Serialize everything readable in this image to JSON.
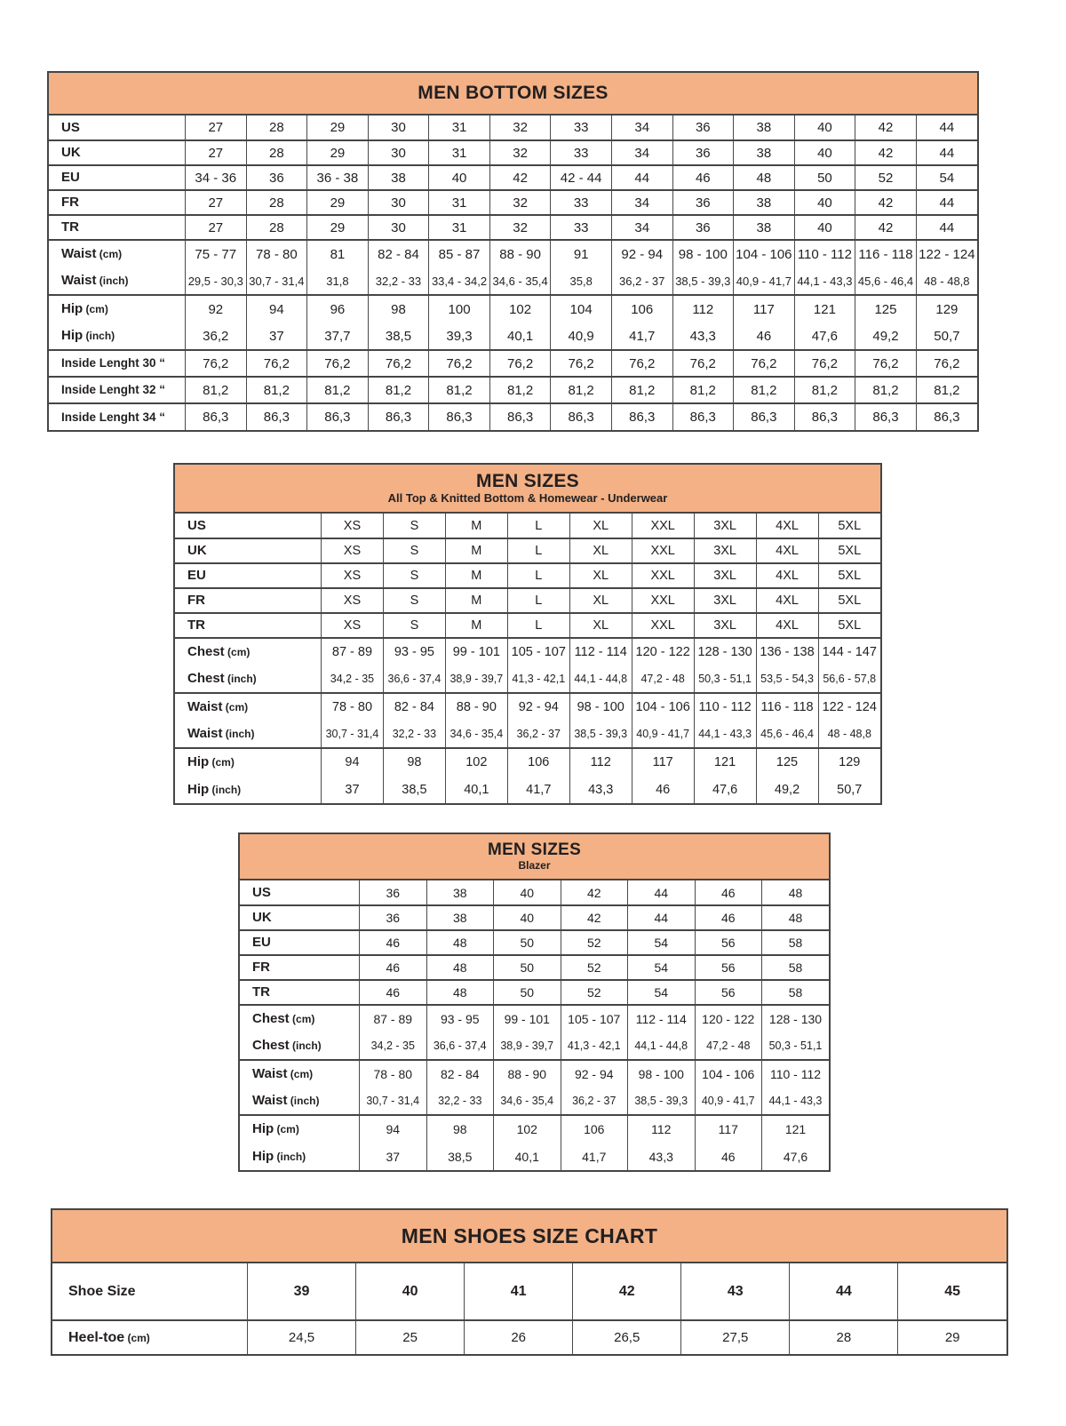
{
  "colors": {
    "header_bg": "#F3B185",
    "border": "#454545",
    "text": "#231f20",
    "page_bg": "#ffffff"
  },
  "tables": [
    {
      "id": "men-bottom-sizes",
      "title": "MEN BOTTOM SIZES",
      "subtitle": "",
      "groups": [
        [
          {
            "label": "US",
            "unit": "",
            "values": [
              "27",
              "28",
              "29",
              "30",
              "31",
              "32",
              "33",
              "34",
              "36",
              "38",
              "40",
              "42",
              "44"
            ]
          }
        ],
        [
          {
            "label": "UK",
            "unit": "",
            "values": [
              "27",
              "28",
              "29",
              "30",
              "31",
              "32",
              "33",
              "34",
              "36",
              "38",
              "40",
              "42",
              "44"
            ]
          }
        ],
        [
          {
            "label": "EU",
            "unit": "",
            "values": [
              "34 - 36",
              "36",
              "36 - 38",
              "38",
              "40",
              "42",
              "42 - 44",
              "44",
              "46",
              "48",
              "50",
              "52",
              "54"
            ]
          }
        ],
        [
          {
            "label": "FR",
            "unit": "",
            "values": [
              "27",
              "28",
              "29",
              "30",
              "31",
              "32",
              "33",
              "34",
              "36",
              "38",
              "40",
              "42",
              "44"
            ]
          }
        ],
        [
          {
            "label": "TR",
            "unit": "",
            "values": [
              "27",
              "28",
              "29",
              "30",
              "31",
              "32",
              "33",
              "34",
              "36",
              "38",
              "40",
              "42",
              "44"
            ]
          }
        ],
        [
          {
            "label": "Waist",
            "unit": "(cm)",
            "values": [
              "75 - 77",
              "78 - 80",
              "81",
              "82 - 84",
              "85 - 87",
              "88 - 90",
              "91",
              "92 - 94",
              "98 - 100",
              "104 - 106",
              "110 - 112",
              "116 - 118",
              "122 - 124"
            ]
          },
          {
            "label": "Waist",
            "unit": "(inch)",
            "size": "sm",
            "values": [
              "29,5 - 30,3",
              "30,7 - 31,4",
              "31,8",
              "32,2 - 33",
              "33,4 - 34,2",
              "34,6 - 35,4",
              "35,8",
              "36,2 - 37",
              "38,5 - 39,3",
              "40,9 - 41,7",
              "44,1 - 43,3",
              "45,6 - 46,4",
              "48 - 48,8"
            ]
          }
        ],
        [
          {
            "label": "Hip",
            "unit": "(cm)",
            "values": [
              "92",
              "94",
              "96",
              "98",
              "100",
              "102",
              "104",
              "106",
              "112",
              "117",
              "121",
              "125",
              "129"
            ]
          },
          {
            "label": "Hip",
            "unit": "(inch)",
            "values": [
              "36,2",
              "37",
              "37,7",
              "38,5",
              "39,3",
              "40,1",
              "40,9",
              "41,7",
              "43,3",
              "46",
              "47,6",
              "49,2",
              "50,7"
            ]
          }
        ],
        [
          {
            "label": "Inside Lenght 30 “",
            "unit": "",
            "label_size": "sm",
            "values": [
              "76,2",
              "76,2",
              "76,2",
              "76,2",
              "76,2",
              "76,2",
              "76,2",
              "76,2",
              "76,2",
              "76,2",
              "76,2",
              "76,2",
              "76,2"
            ]
          }
        ],
        [
          {
            "label": "Inside Lenght 32 “",
            "unit": "",
            "label_size": "sm",
            "values": [
              "81,2",
              "81,2",
              "81,2",
              "81,2",
              "81,2",
              "81,2",
              "81,2",
              "81,2",
              "81,2",
              "81,2",
              "81,2",
              "81,2",
              "81,2"
            ]
          }
        ],
        [
          {
            "label": "Inside Lenght 34 “",
            "unit": "",
            "label_size": "sm",
            "values": [
              "86,3",
              "86,3",
              "86,3",
              "86,3",
              "86,3",
              "86,3",
              "86,3",
              "86,3",
              "86,3",
              "86,3",
              "86,3",
              "86,3",
              "86,3"
            ]
          }
        ]
      ]
    },
    {
      "id": "men-sizes-top",
      "title": "MEN SIZES",
      "subtitle": "All Top & Knitted Bottom & Homewear - Underwear",
      "groups": [
        [
          {
            "label": "US",
            "unit": "",
            "values": [
              "XS",
              "S",
              "M",
              "L",
              "XL",
              "XXL",
              "3XL",
              "4XL",
              "5XL"
            ]
          }
        ],
        [
          {
            "label": "UK",
            "unit": "",
            "values": [
              "XS",
              "S",
              "M",
              "L",
              "XL",
              "XXL",
              "3XL",
              "4XL",
              "5XL"
            ]
          }
        ],
        [
          {
            "label": "EU",
            "unit": "",
            "values": [
              "XS",
              "S",
              "M",
              "L",
              "XL",
              "XXL",
              "3XL",
              "4XL",
              "5XL"
            ]
          }
        ],
        [
          {
            "label": "FR",
            "unit": "",
            "values": [
              "XS",
              "S",
              "M",
              "L",
              "XL",
              "XXL",
              "3XL",
              "4XL",
              "5XL"
            ]
          }
        ],
        [
          {
            "label": "TR",
            "unit": "",
            "values": [
              "XS",
              "S",
              "M",
              "L",
              "XL",
              "XXL",
              "3XL",
              "4XL",
              "5XL"
            ]
          }
        ],
        [
          {
            "label": "Chest",
            "unit": "(cm)",
            "values": [
              "87 - 89",
              "93 - 95",
              "99 - 101",
              "105 - 107",
              "112 - 114",
              "120 - 122",
              "128 - 130",
              "136 - 138",
              "144 - 147"
            ]
          },
          {
            "label": "Chest",
            "unit": "(inch)",
            "size": "sm",
            "values": [
              "34,2 - 35",
              "36,6 - 37,4",
              "38,9 - 39,7",
              "41,3 - 42,1",
              "44,1 - 44,8",
              "47,2 - 48",
              "50,3 - 51,1",
              "53,5 - 54,3",
              "56,6 - 57,8"
            ]
          }
        ],
        [
          {
            "label": "Waist",
            "unit": "(cm)",
            "values": [
              "78 - 80",
              "82 - 84",
              "88 - 90",
              "92 - 94",
              "98 - 100",
              "104 - 106",
              "110 - 112",
              "116 - 118",
              "122 - 124"
            ]
          },
          {
            "label": "Waist",
            "unit": "(inch)",
            "size": "sm",
            "values": [
              "30,7 - 31,4",
              "32,2 - 33",
              "34,6 - 35,4",
              "36,2 - 37",
              "38,5 - 39,3",
              "40,9 - 41,7",
              "44,1 - 43,3",
              "45,6 - 46,4",
              "48 - 48,8"
            ]
          }
        ],
        [
          {
            "label": "Hip",
            "unit": "(cm)",
            "values": [
              "94",
              "98",
              "102",
              "106",
              "112",
              "117",
              "121",
              "125",
              "129"
            ]
          },
          {
            "label": "Hip",
            "unit": "(inch)",
            "values": [
              "37",
              "38,5",
              "40,1",
              "41,7",
              "43,3",
              "46",
              "47,6",
              "49,2",
              "50,7"
            ]
          }
        ]
      ]
    },
    {
      "id": "men-sizes-blazer",
      "title": "MEN SIZES",
      "subtitle": "Blazer",
      "groups": [
        [
          {
            "label": "US",
            "unit": "",
            "values": [
              "36",
              "38",
              "40",
              "42",
              "44",
              "46",
              "48"
            ]
          }
        ],
        [
          {
            "label": "UK",
            "unit": "",
            "values": [
              "36",
              "38",
              "40",
              "42",
              "44",
              "46",
              "48"
            ]
          }
        ],
        [
          {
            "label": "EU",
            "unit": "",
            "values": [
              "46",
              "48",
              "50",
              "52",
              "54",
              "56",
              "58"
            ]
          }
        ],
        [
          {
            "label": "FR",
            "unit": "",
            "values": [
              "46",
              "48",
              "50",
              "52",
              "54",
              "56",
              "58"
            ]
          }
        ],
        [
          {
            "label": "TR",
            "unit": "",
            "values": [
              "46",
              "48",
              "50",
              "52",
              "54",
              "56",
              "58"
            ]
          }
        ],
        [
          {
            "label": "Chest",
            "unit": "(cm)",
            "values": [
              "87 - 89",
              "93 - 95",
              "99 - 101",
              "105 - 107",
              "112 - 114",
              "120 - 122",
              "128 - 130"
            ]
          },
          {
            "label": "Chest",
            "unit": "(inch)",
            "size": "sm",
            "values": [
              "34,2 - 35",
              "36,6 - 37,4",
              "38,9 - 39,7",
              "41,3 - 42,1",
              "44,1 - 44,8",
              "47,2 - 48",
              "50,3 - 51,1"
            ]
          }
        ],
        [
          {
            "label": "Waist",
            "unit": "(cm)",
            "values": [
              "78 - 80",
              "82 - 84",
              "88 - 90",
              "92 - 94",
              "98 - 100",
              "104 - 106",
              "110 - 112"
            ]
          },
          {
            "label": "Waist",
            "unit": "(inch)",
            "size": "sm",
            "values": [
              "30,7 - 31,4",
              "32,2 - 33",
              "34,6 - 35,4",
              "36,2 - 37",
              "38,5 - 39,3",
              "40,9 - 41,7",
              "44,1 - 43,3"
            ]
          }
        ],
        [
          {
            "label": "Hip",
            "unit": "(cm)",
            "values": [
              "94",
              "98",
              "102",
              "106",
              "112",
              "117",
              "121"
            ]
          },
          {
            "label": "Hip",
            "unit": "(inch)",
            "values": [
              "37",
              "38,5",
              "40,1",
              "41,7",
              "43,3",
              "46",
              "47,6"
            ]
          }
        ]
      ]
    },
    {
      "id": "men-shoes-size-chart",
      "title": "MEN SHOES SIZE CHART",
      "subtitle": "",
      "groups": [
        [
          {
            "label": "Shoe Size",
            "unit": "",
            "bold_values": true,
            "values": [
              "39",
              "40",
              "41",
              "42",
              "43",
              "44",
              "45"
            ]
          }
        ],
        [
          {
            "label": "Heel-toe",
            "unit": "(cm)",
            "values": [
              "24,5",
              "25",
              "26",
              "26,5",
              "27,5",
              "28",
              "29"
            ]
          }
        ]
      ]
    }
  ]
}
